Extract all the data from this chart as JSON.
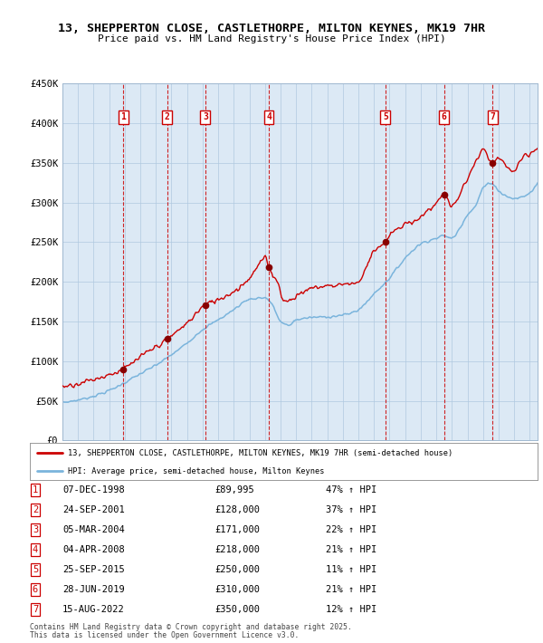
{
  "title": "13, SHEPPERTON CLOSE, CASTLETHORPE, MILTON KEYNES, MK19 7HR",
  "subtitle": "Price paid vs. HM Land Registry's House Price Index (HPI)",
  "background_color": "#dce9f5",
  "ylim": [
    0,
    450000
  ],
  "yticks": [
    0,
    50000,
    100000,
    150000,
    200000,
    250000,
    300000,
    350000,
    400000,
    450000
  ],
  "ytick_labels": [
    "£0",
    "£50K",
    "£100K",
    "£150K",
    "£200K",
    "£250K",
    "£300K",
    "£350K",
    "£400K",
    "£450K"
  ],
  "sale_dates_num": [
    1998.92,
    2001.73,
    2004.17,
    2008.25,
    2015.73,
    2019.49,
    2022.62
  ],
  "sale_prices": [
    89995,
    128000,
    171000,
    218000,
    250000,
    310000,
    350000
  ],
  "sale_labels": [
    "1",
    "2",
    "3",
    "4",
    "5",
    "6",
    "7"
  ],
  "hpi_color": "#7ab4dc",
  "price_color": "#cc0000",
  "marker_color": "#880000",
  "legend_line1": "13, SHEPPERTON CLOSE, CASTLETHORPE, MILTON KEYNES, MK19 7HR (semi-detached house)",
  "legend_line2": "HPI: Average price, semi-detached house, Milton Keynes",
  "table_entries": [
    {
      "label": "1",
      "date": "07-DEC-1998",
      "price": "£89,995",
      "hpi": "47% ↑ HPI"
    },
    {
      "label": "2",
      "date": "24-SEP-2001",
      "price": "£128,000",
      "hpi": "37% ↑ HPI"
    },
    {
      "label": "3",
      "date": "05-MAR-2004",
      "price": "£171,000",
      "hpi": "22% ↑ HPI"
    },
    {
      "label": "4",
      "date": "04-APR-2008",
      "price": "£218,000",
      "hpi": "21% ↑ HPI"
    },
    {
      "label": "5",
      "date": "25-SEP-2015",
      "price": "£250,000",
      "hpi": "11% ↑ HPI"
    },
    {
      "label": "6",
      "date": "28-JUN-2019",
      "price": "£310,000",
      "hpi": "21% ↑ HPI"
    },
    {
      "label": "7",
      "date": "15-AUG-2022",
      "price": "£350,000",
      "hpi": "12% ↑ HPI"
    }
  ],
  "footnote1": "Contains HM Land Registry data © Crown copyright and database right 2025.",
  "footnote2": "This data is licensed under the Open Government Licence v3.0.",
  "xmin": 1995.0,
  "xmax": 2025.5,
  "hpi_anchors_x": [
    1995.0,
    1996.0,
    1997.0,
    1998.0,
    1999.0,
    2000.0,
    2001.0,
    2002.0,
    2003.0,
    2004.0,
    2005.0,
    2006.0,
    2007.0,
    2008.0,
    2008.5,
    2009.0,
    2009.5,
    2010.0,
    2011.0,
    2012.0,
    2013.0,
    2014.0,
    2015.0,
    2016.0,
    2017.0,
    2017.5,
    2018.0,
    2019.0,
    2019.5,
    2020.0,
    2020.5,
    2021.0,
    2021.5,
    2022.0,
    2022.5,
    2023.0,
    2023.5,
    2024.0,
    2025.0,
    2025.5
  ],
  "hpi_anchors_y": [
    48000,
    51000,
    56000,
    63000,
    73000,
    84000,
    95000,
    108000,
    123000,
    140000,
    152000,
    165000,
    178000,
    180000,
    170000,
    150000,
    145000,
    152000,
    155000,
    156000,
    158000,
    165000,
    185000,
    205000,
    230000,
    240000,
    248000,
    255000,
    258000,
    255000,
    268000,
    285000,
    295000,
    318000,
    325000,
    315000,
    308000,
    305000,
    312000,
    325000
  ],
  "prop_anchors_x": [
    1995.0,
    1996.0,
    1997.5,
    1998.92,
    2000.0,
    2001.73,
    2003.0,
    2004.17,
    2005.0,
    2006.0,
    2007.0,
    2007.5,
    2008.0,
    2008.25,
    2008.8,
    2009.3,
    2010.0,
    2011.0,
    2012.0,
    2013.0,
    2014.0,
    2015.0,
    2015.73,
    2016.0,
    2017.0,
    2018.0,
    2019.0,
    2019.49,
    2020.0,
    2020.5,
    2021.0,
    2021.5,
    2022.0,
    2022.62,
    2023.0,
    2023.5,
    2024.0,
    2024.5,
    2025.0,
    2025.5
  ],
  "prop_anchors_y": [
    68000,
    72000,
    80000,
    89995,
    105000,
    128000,
    148000,
    171000,
    178000,
    188000,
    205000,
    218000,
    230000,
    218000,
    200000,
    175000,
    182000,
    192000,
    195000,
    197000,
    200000,
    240000,
    250000,
    258000,
    272000,
    282000,
    300000,
    310000,
    295000,
    310000,
    330000,
    350000,
    365000,
    350000,
    355000,
    345000,
    340000,
    355000,
    360000,
    370000
  ]
}
